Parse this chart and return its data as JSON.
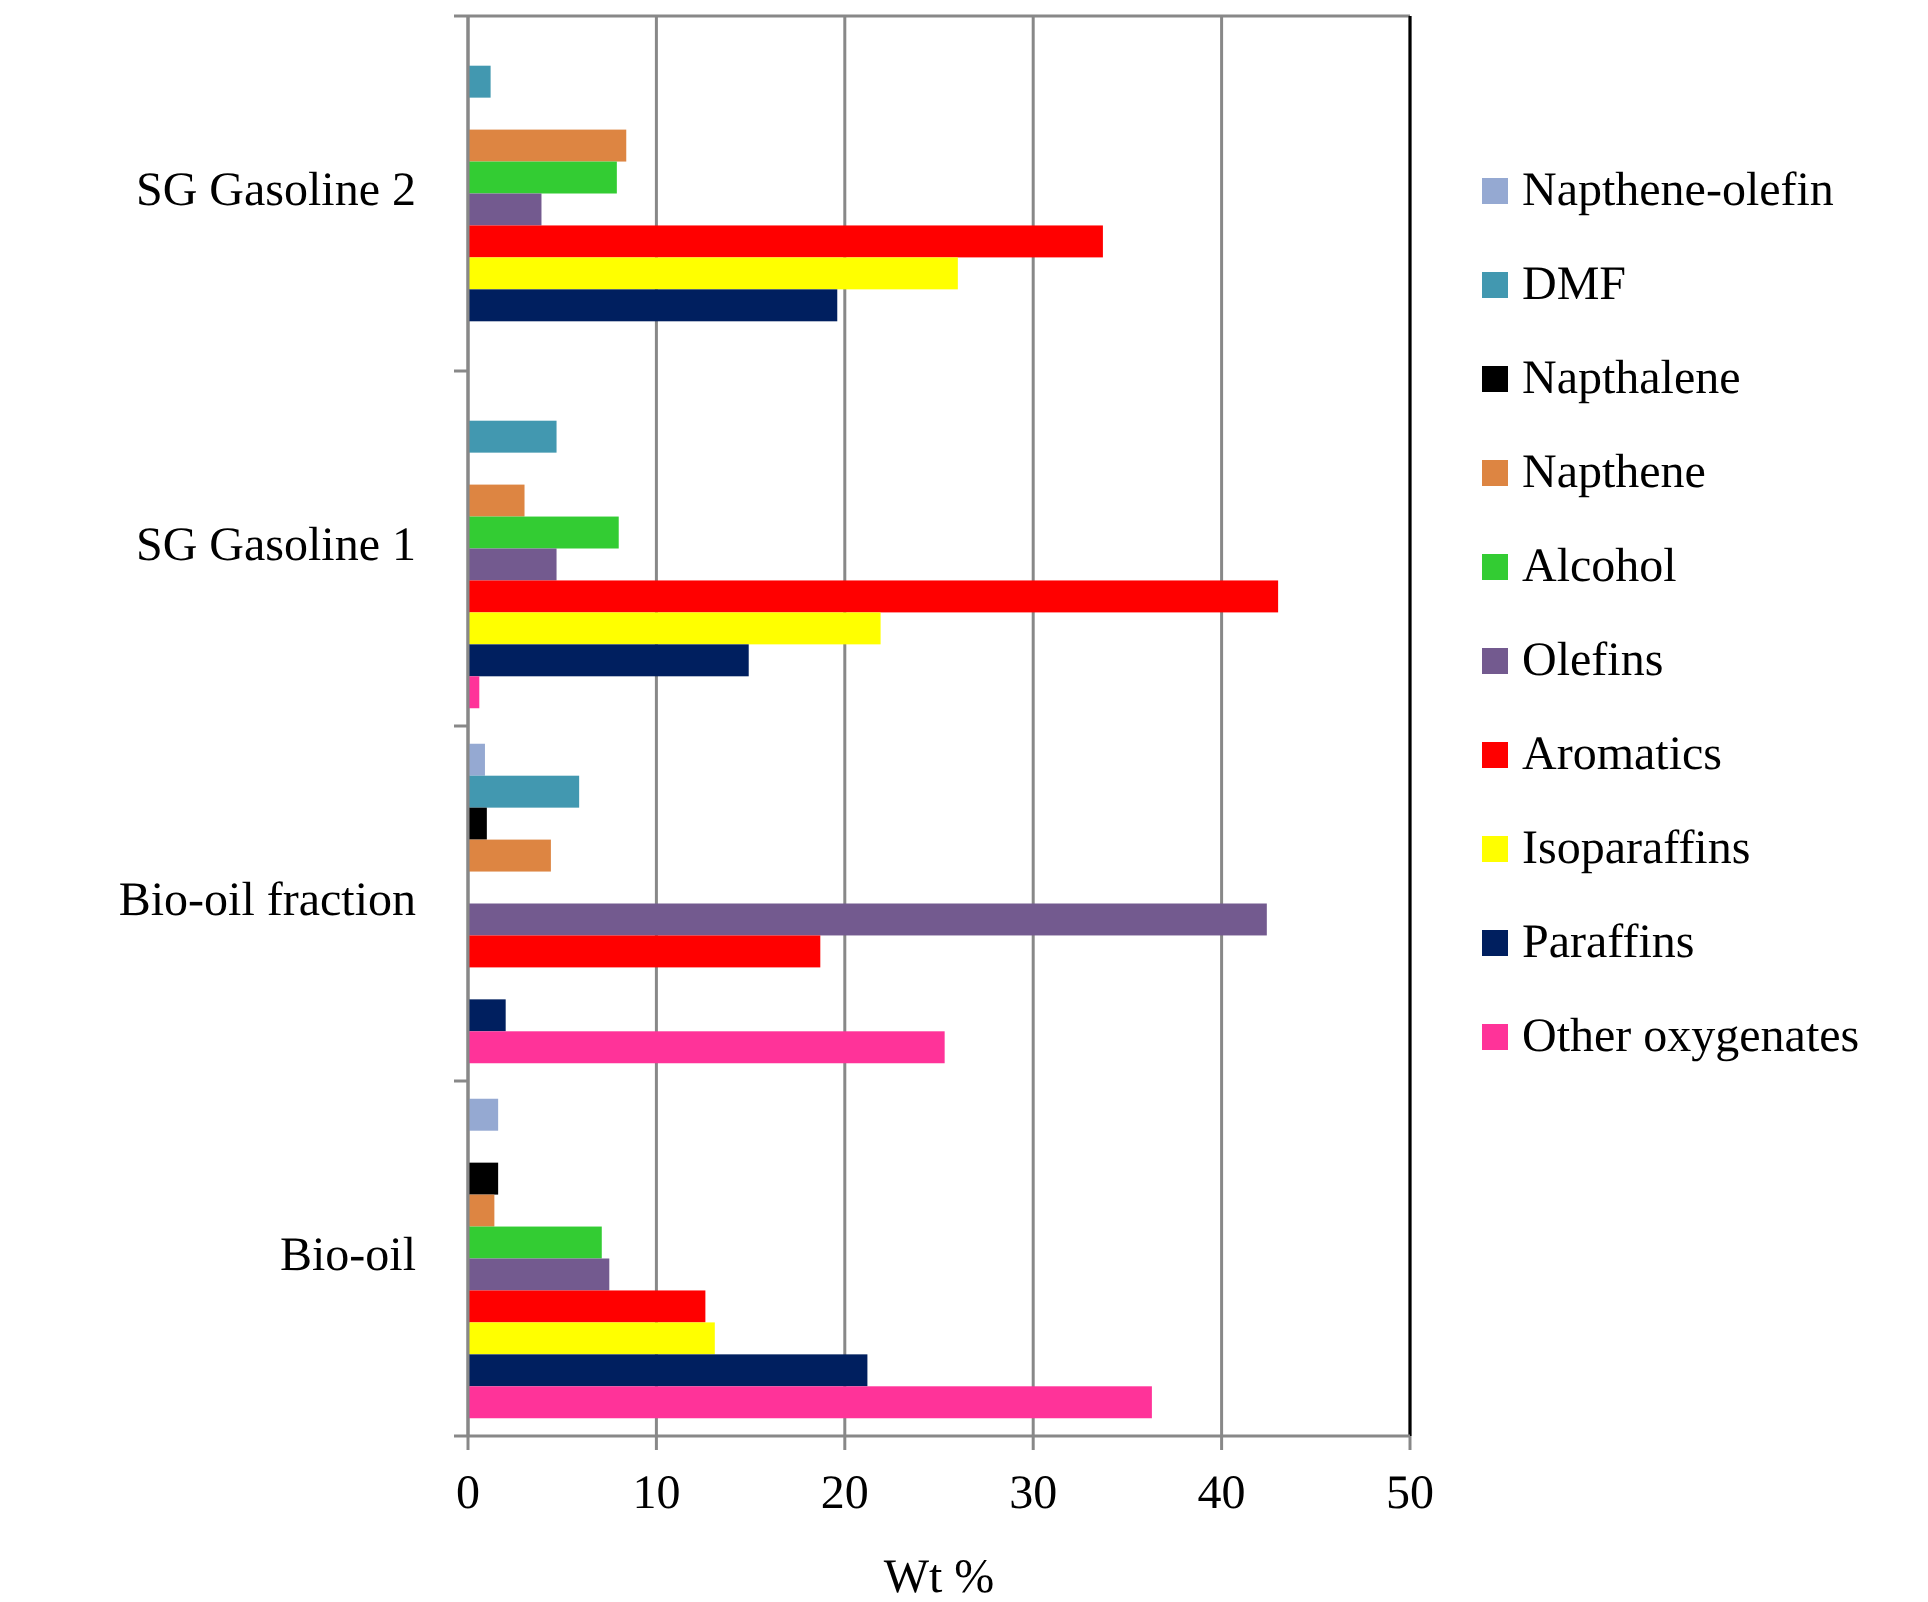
{
  "chart_data": {
    "type": "bar",
    "orientation": "horizontal",
    "xlabel": "Wt %",
    "categories": [
      "SG Gasoline 2",
      "SG Gasoline 1",
      "Bio-oil fraction",
      "Bio-oil"
    ],
    "series": [
      {
        "name": "Napthene-olefin",
        "color": "#95a9d2",
        "values": [
          null,
          null,
          0.9,
          1.6
        ]
      },
      {
        "name": "DMF",
        "color": "#4298b0",
        "values": [
          1.2,
          4.7,
          5.9,
          null
        ]
      },
      {
        "name": "Napthalene",
        "color": "#000000",
        "values": [
          null,
          null,
          1.0,
          1.6
        ]
      },
      {
        "name": "Napthene",
        "color": "#dd8542",
        "values": [
          8.4,
          3.0,
          4.4,
          1.4
        ]
      },
      {
        "name": "Alcohol",
        "color": "#33cc33",
        "values": [
          7.9,
          8.0,
          null,
          7.1
        ]
      },
      {
        "name": "Olefins",
        "color": "#735a8f",
        "values": [
          3.9,
          4.7,
          42.4,
          7.5
        ]
      },
      {
        "name": "Aromatics",
        "color": "#ff0000",
        "values": [
          33.7,
          43.0,
          18.7,
          12.6
        ]
      },
      {
        "name": "Isoparaffins",
        "color": "#ffff00",
        "values": [
          26.0,
          21.9,
          null,
          13.1
        ]
      },
      {
        "name": "Paraffins",
        "color": "#001f5f",
        "values": [
          19.6,
          14.9,
          2.0,
          21.2
        ]
      },
      {
        "name": "Other oxygenates",
        "color": "#ff3399",
        "values": [
          null,
          0.6,
          25.3,
          36.3
        ]
      }
    ],
    "xlim": [
      0,
      50
    ],
    "xticks": [
      0,
      10,
      20,
      30,
      40,
      50
    ],
    "grid": "x",
    "legend": "right"
  }
}
